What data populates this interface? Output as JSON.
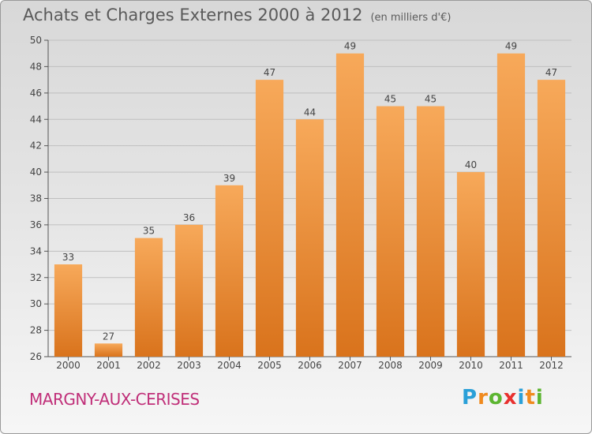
{
  "header": {
    "title": "Achats et Charges Externes 2000 à 2012",
    "subtitle": "(en milliers d'€)"
  },
  "footer": {
    "commune": "MARGNY-AUX-CERISES",
    "logo_text": "Proxiti"
  },
  "colors": {
    "bar_light": "#f7a95a",
    "bar_dark": "#d9731c",
    "commune_text": "#c02f79",
    "logo_letters": [
      "#2aa0d8",
      "#f08a1e",
      "#5cb531",
      "#e8312f",
      "#2aa0d8",
      "#f08a1e",
      "#5cb531"
    ]
  },
  "chart_data": {
    "type": "bar",
    "title": "Achats et Charges Externes 2000 à 2012",
    "subtitle": "(en milliers d'€)",
    "categories": [
      "2000",
      "2001",
      "2002",
      "2003",
      "2004",
      "2005",
      "2006",
      "2007",
      "2008",
      "2009",
      "2010",
      "2011",
      "2012"
    ],
    "values": [
      33,
      27,
      35,
      36,
      39,
      47,
      44,
      49,
      45,
      45,
      40,
      49,
      47
    ],
    "ylim": [
      26,
      50
    ],
    "yticks": [
      26,
      28,
      30,
      32,
      34,
      36,
      38,
      40,
      42,
      44,
      46,
      48,
      50
    ],
    "grid": true,
    "xlabel": "",
    "ylabel": ""
  }
}
